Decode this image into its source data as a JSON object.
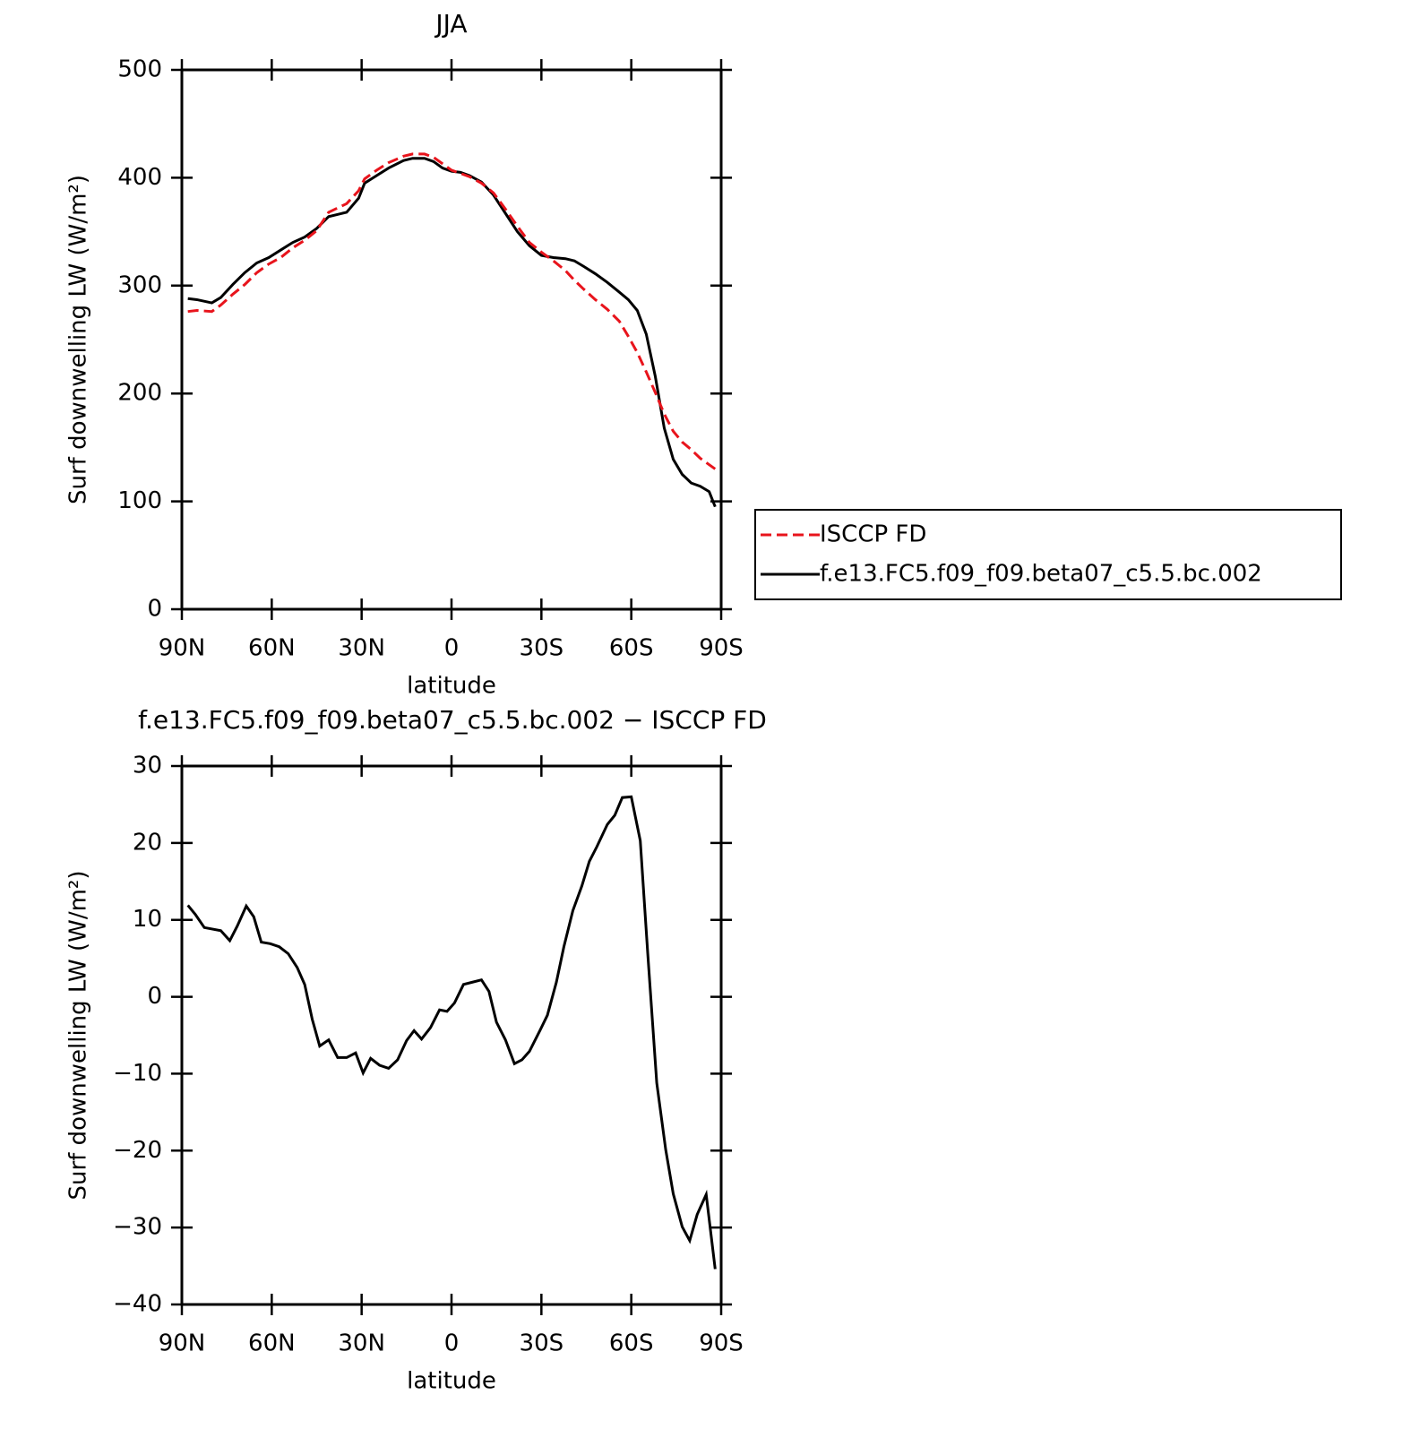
{
  "chart_data": [
    {
      "type": "line",
      "title": "JJA",
      "xlabel": "latitude",
      "ylabel": "Surf downwelling LW (W/m²)",
      "xlim": [
        90,
        -90
      ],
      "ylim": [
        0,
        500
      ],
      "xticks": [
        {
          "value": 90,
          "label": "90N"
        },
        {
          "value": 60,
          "label": "60N"
        },
        {
          "value": 30,
          "label": "30N"
        },
        0,
        {
          "value": -30,
          "label": "30S"
        },
        {
          "value": -60,
          "label": "60S"
        },
        {
          "value": -90,
          "label": "90S"
        }
      ],
      "yticks": [
        0,
        100,
        200,
        300,
        400,
        500
      ],
      "x": [
        88,
        85,
        80,
        77,
        73,
        69,
        65,
        61,
        57,
        53,
        49,
        45,
        41,
        35,
        31,
        29,
        25,
        21,
        16,
        13,
        9,
        6,
        3,
        0,
        -3,
        -6,
        -10,
        -14,
        -18,
        -22,
        -26,
        -30,
        -34,
        -38,
        -41,
        -44,
        -48,
        -52,
        -56,
        -59,
        -62,
        -65,
        -68,
        -71,
        -74,
        -77,
        -80,
        -83,
        -86,
        -88
      ],
      "legend": "right",
      "series": [
        {
          "name": "ISCCP FD",
          "color": "#e8141c",
          "linestyle": "dashed",
          "values": [
            276,
            277,
            276,
            282,
            292,
            301,
            312,
            320,
            326,
            335,
            342,
            351,
            368,
            376,
            388,
            399,
            407,
            414,
            420,
            422,
            422,
            419,
            413,
            407,
            404,
            401,
            395,
            386,
            371,
            355,
            340,
            331,
            323,
            314,
            305,
            297,
            287,
            278,
            267,
            253,
            238,
            220,
            201,
            181,
            165,
            155,
            148,
            140,
            134,
            130
          ]
        },
        {
          "name": "f.e13.FC5.f09_f09.beta07_c5.5.bc.002",
          "color": "#000000",
          "linestyle": "solid",
          "values": [
            288,
            287,
            284,
            289,
            301,
            312,
            321,
            326,
            333,
            340,
            345,
            353,
            364,
            368,
            381,
            395,
            402,
            409,
            416,
            418,
            418,
            415,
            409,
            406,
            405,
            402,
            396,
            384,
            367,
            350,
            337,
            328,
            326,
            325,
            323,
            318,
            311,
            303,
            294,
            287,
            277,
            255,
            216,
            168,
            139,
            125,
            117,
            114,
            109,
            95
          ]
        }
      ]
    },
    {
      "type": "line",
      "title": "f.e13.FC5.f09_f09.beta07_c5.5.bc.002 − ISCCP FD",
      "xlabel": "latitude",
      "ylabel": "Surf downwelling LW (W/m²)",
      "xlim": [
        90,
        -90
      ],
      "ylim": [
        -40,
        30
      ],
      "xticks": [
        {
          "value": 90,
          "label": "90N"
        },
        {
          "value": 60,
          "label": "60N"
        },
        {
          "value": 30,
          "label": "30N"
        },
        0,
        {
          "value": -30,
          "label": "30S"
        },
        {
          "value": -60,
          "label": "60S"
        },
        {
          "value": -90,
          "label": "90S"
        }
      ],
      "yticks": [
        {
          "value": -40,
          "label": "−40"
        },
        {
          "value": -30,
          "label": "−30"
        },
        {
          "value": -20,
          "label": "−20"
        },
        {
          "value": -10,
          "label": "−10"
        },
        0,
        10,
        20,
        30
      ],
      "color": "#000000",
      "x": [
        88,
        85.5,
        82.5,
        77,
        74,
        71.5,
        68.5,
        66,
        63.5,
        60.5,
        57.5,
        54.5,
        51.5,
        49,
        46.5,
        44,
        41,
        38,
        35,
        32,
        29.5,
        27,
        24,
        21,
        18,
        15,
        12.5,
        10,
        7,
        4,
        1.5,
        -1,
        -4,
        -7,
        -10,
        -12.5,
        -15,
        -18,
        -21,
        -23.5,
        -26,
        -29.5,
        -32,
        -35,
        -37.5,
        -40.5,
        -43.5,
        -46,
        -48.5,
        -52,
        -54.5,
        -57,
        -60,
        -63,
        -65.5,
        -68.5,
        -71.5,
        -74,
        -77,
        -79.5,
        -82,
        -85,
        -88
      ],
      "values": [
        11.9,
        10.7,
        9.0,
        8.6,
        7.3,
        9.2,
        11.8,
        10.4,
        7.1,
        6.9,
        6.5,
        5.6,
        3.8,
        1.6,
        -2.9,
        -6.4,
        -5.6,
        -7.9,
        -7.9,
        -7.3,
        -9.9,
        -8.0,
        -8.9,
        -9.3,
        -8.2,
        -5.7,
        -4.4,
        -5.5,
        -4.0,
        -1.7,
        -1.9,
        -0.8,
        1.6,
        1.9,
        2.2,
        0.7,
        -3.3,
        -5.6,
        -8.7,
        -8.2,
        -7.1,
        -4.4,
        -2.4,
        1.9,
        6.5,
        11.2,
        14.4,
        17.6,
        19.5,
        22.4,
        23.6,
        25.9,
        26.0,
        20.3,
        5.6,
        -11.2,
        -19.9,
        -25.6,
        -29.9,
        -31.7,
        -28.3,
        -25.7,
        -35.4
      ]
    }
  ]
}
